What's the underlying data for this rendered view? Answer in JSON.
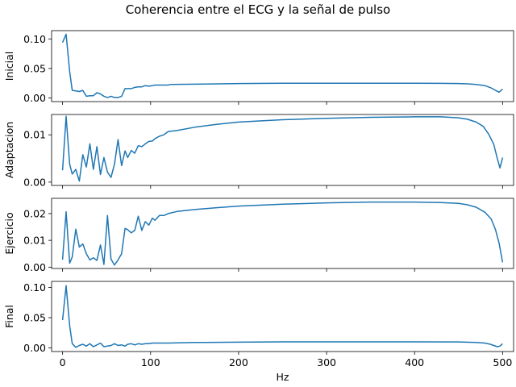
{
  "chart_data": {
    "type": "line",
    "title": "Coherencia entre el ECG y la señal de pulso",
    "xlabel": "Hz",
    "xlim": [
      -12.5,
      512.5
    ],
    "x_ticks": [
      0,
      100,
      200,
      300,
      400,
      500
    ],
    "x_tick_labels": [
      "0",
      "100",
      "200",
      "300",
      "400",
      "500"
    ],
    "color": "#1f77b4",
    "grid": false,
    "subplots": [
      {
        "ylabel": "Inicial",
        "ylim": [
          -0.006,
          0.114
        ],
        "y_ticks": [
          0,
          0.05,
          0.1
        ],
        "y_tick_labels": [
          "0.00",
          "0.05",
          "0.10"
        ],
        "points": [
          [
            0,
            0.094
          ],
          [
            4,
            0.108
          ],
          [
            8,
            0.045
          ],
          [
            11,
            0.013
          ],
          [
            15,
            0.012
          ],
          [
            19,
            0.011
          ],
          [
            23,
            0.013
          ],
          [
            27,
            0.003
          ],
          [
            31,
            0.004
          ],
          [
            35,
            0.004
          ],
          [
            39,
            0.009
          ],
          [
            43,
            0.007
          ],
          [
            47,
            0.003
          ],
          [
            51,
            0.001
          ],
          [
            55,
            0.003
          ],
          [
            59,
            0.001
          ],
          [
            63,
            0.001
          ],
          [
            67,
            0.003
          ],
          [
            71,
            0.016
          ],
          [
            74,
            0.016
          ],
          [
            78,
            0.016
          ],
          [
            82,
            0.018
          ],
          [
            86,
            0.019
          ],
          [
            90,
            0.019
          ],
          [
            94,
            0.021
          ],
          [
            98,
            0.02
          ],
          [
            102,
            0.021
          ],
          [
            105,
            0.022
          ],
          [
            110,
            0.022
          ],
          [
            115,
            0.022
          ],
          [
            120,
            0.022
          ],
          [
            123,
            0.023
          ],
          [
            150,
            0.0235
          ],
          [
            200,
            0.0245
          ],
          [
            250,
            0.025
          ],
          [
            300,
            0.025
          ],
          [
            350,
            0.025
          ],
          [
            400,
            0.025
          ],
          [
            430,
            0.0248
          ],
          [
            450,
            0.0245
          ],
          [
            460,
            0.024
          ],
          [
            470,
            0.023
          ],
          [
            480,
            0.021
          ],
          [
            487,
            0.017
          ],
          [
            492,
            0.013
          ],
          [
            496,
            0.01
          ],
          [
            500,
            0.015
          ]
        ]
      },
      {
        "ylabel": "Adaptacion",
        "ylim": [
          -0.0007,
          0.0143
        ],
        "y_ticks": [
          0,
          0.01
        ],
        "y_tick_labels": [
          "0.00",
          "0.01"
        ],
        "points": [
          [
            0,
            0.0025
          ],
          [
            4,
            0.0139
          ],
          [
            8,
            0.0038
          ],
          [
            11,
            0.0017
          ],
          [
            15,
            0.0027
          ],
          [
            19,
            0.0002
          ],
          [
            23,
            0.0058
          ],
          [
            27,
            0.0032
          ],
          [
            31,
            0.0081
          ],
          [
            35,
            0.0027
          ],
          [
            39,
            0.0075
          ],
          [
            43,
            0.0016
          ],
          [
            47,
            0.0052
          ],
          [
            51,
            0.0021
          ],
          [
            55,
            0.001
          ],
          [
            59,
            0.0038
          ],
          [
            63,
            0.009
          ],
          [
            67,
            0.0035
          ],
          [
            71,
            0.0066
          ],
          [
            74,
            0.0052
          ],
          [
            78,
            0.0067
          ],
          [
            82,
            0.0061
          ],
          [
            86,
            0.0077
          ],
          [
            90,
            0.0075
          ],
          [
            94,
            0.0081
          ],
          [
            98,
            0.0086
          ],
          [
            102,
            0.0087
          ],
          [
            105,
            0.0092
          ],
          [
            110,
            0.0097
          ],
          [
            115,
            0.01
          ],
          [
            120,
            0.0107
          ],
          [
            130,
            0.0109
          ],
          [
            150,
            0.0116
          ],
          [
            175,
            0.0122
          ],
          [
            200,
            0.0127
          ],
          [
            250,
            0.0132
          ],
          [
            300,
            0.0135
          ],
          [
            350,
            0.0137
          ],
          [
            400,
            0.0138
          ],
          [
            430,
            0.0138
          ],
          [
            450,
            0.0136
          ],
          [
            460,
            0.0133
          ],
          [
            470,
            0.0127
          ],
          [
            478,
            0.0118
          ],
          [
            484,
            0.0102
          ],
          [
            490,
            0.008
          ],
          [
            494,
            0.005
          ],
          [
            497,
            0.003
          ],
          [
            500,
            0.0052
          ]
        ]
      },
      {
        "ylabel": "Ejercicio",
        "ylim": [
          -0.0005,
          0.0257
        ],
        "y_ticks": [
          0,
          0.01,
          0.02
        ],
        "y_tick_labels": [
          "0.00",
          "0.01",
          "0.02"
        ],
        "points": [
          [
            0,
            0.0028
          ],
          [
            4,
            0.0207
          ],
          [
            8,
            0.0015
          ],
          [
            11,
            0.0038
          ],
          [
            15,
            0.0142
          ],
          [
            19,
            0.0075
          ],
          [
            23,
            0.0087
          ],
          [
            27,
            0.005
          ],
          [
            31,
            0.0027
          ],
          [
            35,
            0.0035
          ],
          [
            39,
            0.0025
          ],
          [
            43,
            0.0083
          ],
          [
            47,
            0.001
          ],
          [
            51,
            0.0193
          ],
          [
            55,
            0.003
          ],
          [
            59,
            0.0008
          ],
          [
            63,
            0.0027
          ],
          [
            67,
            0.005
          ],
          [
            71,
            0.0145
          ],
          [
            74,
            0.014
          ],
          [
            78,
            0.0128
          ],
          [
            82,
            0.0137
          ],
          [
            86,
            0.019
          ],
          [
            90,
            0.0137
          ],
          [
            94,
            0.017
          ],
          [
            98,
            0.0157
          ],
          [
            102,
            0.0183
          ],
          [
            105,
            0.0175
          ],
          [
            110,
            0.0193
          ],
          [
            115,
            0.0193
          ],
          [
            120,
            0.02
          ],
          [
            130,
            0.0208
          ],
          [
            150,
            0.0215
          ],
          [
            175,
            0.0222
          ],
          [
            200,
            0.0228
          ],
          [
            250,
            0.0235
          ],
          [
            300,
            0.024
          ],
          [
            350,
            0.0243
          ],
          [
            400,
            0.0243
          ],
          [
            430,
            0.0241
          ],
          [
            450,
            0.0238
          ],
          [
            460,
            0.0233
          ],
          [
            470,
            0.0224
          ],
          [
            480,
            0.0205
          ],
          [
            487,
            0.018
          ],
          [
            492,
            0.014
          ],
          [
            496,
            0.009
          ],
          [
            500,
            0.0018
          ]
        ]
      },
      {
        "ylabel": "Final",
        "ylim": [
          -0.006,
          0.11
        ],
        "y_ticks": [
          0,
          0.05,
          0.1
        ],
        "y_tick_labels": [
          "0.00",
          "0.05",
          "0.10"
        ],
        "points": [
          [
            0,
            0.046
          ],
          [
            4,
            0.103
          ],
          [
            8,
            0.037
          ],
          [
            11,
            0.007
          ],
          [
            15,
            0.001
          ],
          [
            19,
            0.004
          ],
          [
            23,
            0.006
          ],
          [
            27,
            0.003
          ],
          [
            31,
            0.007
          ],
          [
            35,
            0.002
          ],
          [
            39,
            0.005
          ],
          [
            43,
            0.008
          ],
          [
            47,
            0.002
          ],
          [
            51,
            0.003
          ],
          [
            55,
            0.004
          ],
          [
            59,
            0.007
          ],
          [
            63,
            0.004
          ],
          [
            67,
            0.005
          ],
          [
            71,
            0.003
          ],
          [
            74,
            0.006
          ],
          [
            78,
            0.007
          ],
          [
            82,
            0.005
          ],
          [
            86,
            0.007
          ],
          [
            90,
            0.006
          ],
          [
            94,
            0.007
          ],
          [
            98,
            0.007
          ],
          [
            102,
            0.008
          ],
          [
            110,
            0.008
          ],
          [
            120,
            0.008
          ],
          [
            150,
            0.009
          ],
          [
            200,
            0.0095
          ],
          [
            250,
            0.01
          ],
          [
            300,
            0.01
          ],
          [
            350,
            0.01
          ],
          [
            400,
            0.01
          ],
          [
            450,
            0.0098
          ],
          [
            470,
            0.009
          ],
          [
            480,
            0.008
          ],
          [
            486,
            0.006
          ],
          [
            490,
            0.004
          ],
          [
            494,
            0.002
          ],
          [
            497,
            0.003
          ],
          [
            500,
            0.007
          ]
        ]
      }
    ]
  }
}
